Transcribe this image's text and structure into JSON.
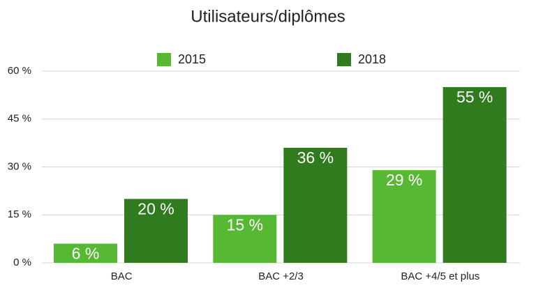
{
  "chart_data": {
    "type": "bar",
    "title": "Utilisateurs/diplômes",
    "categories": [
      "BAC",
      "BAC +2/3",
      "BAC +4/5 et plus"
    ],
    "series": [
      {
        "name": "2015",
        "color": "#56b833",
        "values": [
          6,
          15,
          29
        ],
        "value_labels": [
          "6 %",
          "15 %",
          "29 %"
        ]
      },
      {
        "name": "2018",
        "color": "#2f7b1d",
        "values": [
          20,
          36,
          55
        ],
        "value_labels": [
          "20 %",
          "36 %",
          "55 %"
        ]
      }
    ],
    "ylim": [
      0,
      60
    ],
    "yticks": [
      {
        "value": 0,
        "label": "0 %"
      },
      {
        "value": 15,
        "label": "15 %"
      },
      {
        "value": 30,
        "label": "30 %"
      },
      {
        "value": 45,
        "label": "45 %"
      },
      {
        "value": 60,
        "label": "60 %"
      }
    ],
    "grid": true
  }
}
